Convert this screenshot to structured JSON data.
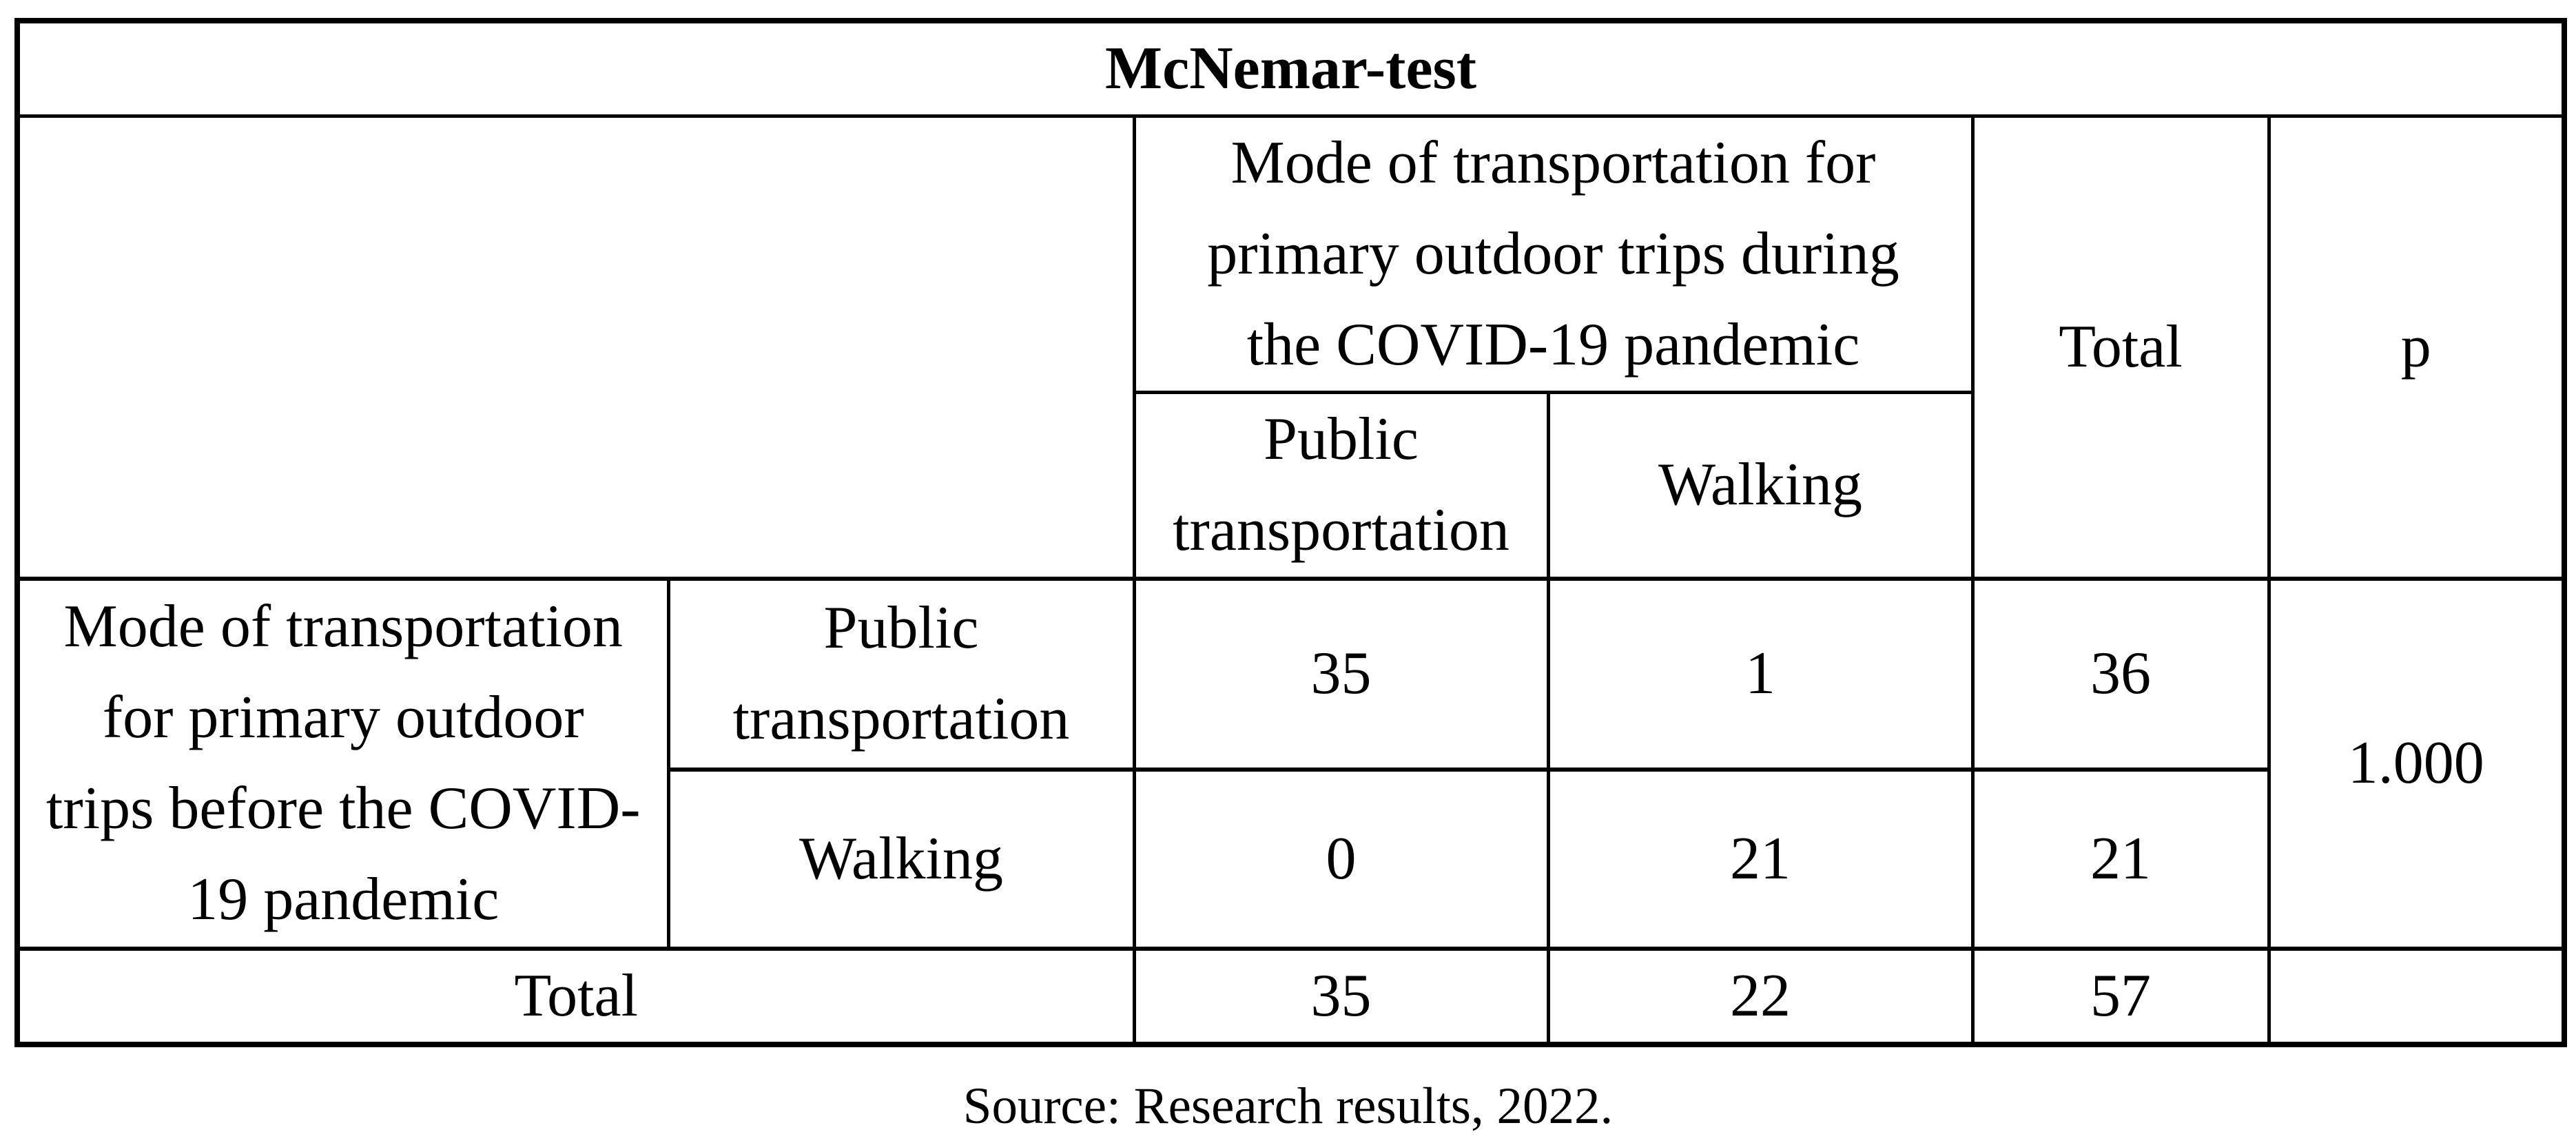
{
  "colors": {
    "background": "#ffffff",
    "border": "#000000",
    "text": "#000000"
  },
  "table": {
    "title": "McNemar-test",
    "header": {
      "during_label": "Mode of transportation for\nprimary outdoor trips during\nthe COVID-19 pandemic",
      "during_sub": [
        "Public\ntransportation",
        "Walking"
      ],
      "total_label": "Total",
      "p_label": "p"
    },
    "before": {
      "label": "Mode of transportation\nfor primary outdoor\ntrips before the COVID-\n19 pandemic",
      "rows": [
        {
          "label": "Public\ntransportation",
          "values": [
            "35",
            "1",
            "36"
          ]
        },
        {
          "label": "Walking",
          "values": [
            "0",
            "21",
            "21"
          ]
        }
      ],
      "p_value": "1.000"
    },
    "total_row": {
      "label": "Total",
      "values": [
        "35",
        "22",
        "57"
      ],
      "p": ""
    }
  },
  "source_note": "Source: Research results, 2022."
}
